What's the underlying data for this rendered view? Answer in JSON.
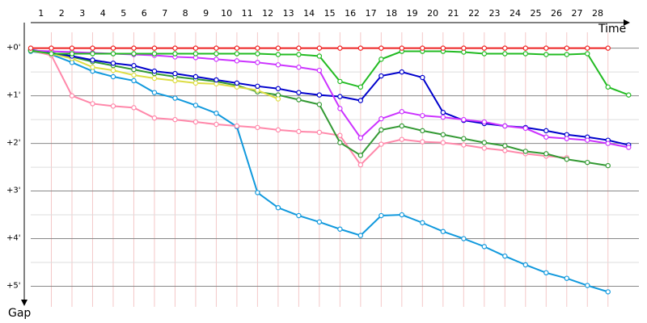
{
  "chart_data": {
    "type": "line",
    "x_label": "Time",
    "y_label": "Gap",
    "x": [
      0,
      1,
      2,
      3,
      4,
      5,
      6,
      7,
      8,
      9,
      10,
      11,
      12,
      13,
      14,
      15,
      16,
      17,
      18,
      19,
      20,
      21,
      22,
      23,
      24,
      25,
      26,
      27,
      28,
      29
    ],
    "xlim": [
      0,
      29.5
    ],
    "xticks": [
      1,
      2,
      3,
      4,
      5,
      6,
      7,
      8,
      9,
      10,
      11,
      12,
      13,
      14,
      15,
      16,
      17,
      18,
      19,
      20,
      21,
      22,
      23,
      24,
      25,
      26,
      27,
      28
    ],
    "ylim": [
      -22,
      330
    ],
    "yticks": [
      {
        "value": 0,
        "label": "+0'"
      },
      {
        "value": 60,
        "label": "+1'"
      },
      {
        "value": 120,
        "label": "+2'"
      },
      {
        "value": 180,
        "label": "+3'"
      },
      {
        "value": 240,
        "label": "+4'"
      },
      {
        "value": 300,
        "label": "+5'"
      }
    ],
    "minor_yticks": [
      30,
      90,
      150,
      210,
      270
    ],
    "grid": true,
    "series": [
      {
        "color": "#1199dd",
        "values": [
          4,
          8,
          18,
          29,
          36,
          41,
          56,
          63,
          72,
          82,
          99,
          182,
          201,
          211,
          219,
          228,
          236,
          211,
          210,
          220,
          231,
          240,
          250,
          262,
          273,
          283,
          290,
          299,
          307,
          null
        ]
      },
      {
        "color": "#ff88aa",
        "values": [
          3,
          9,
          60,
          70,
          73,
          75,
          88,
          90,
          93,
          96,
          98,
          100,
          103,
          105,
          106,
          110,
          147,
          121,
          115,
          118,
          119,
          122,
          126,
          129,
          133,
          136,
          138,
          null,
          null,
          null
        ]
      },
      {
        "color": "#339933",
        "values": [
          3,
          6,
          11,
          17,
          22,
          27,
          32,
          36,
          39,
          42,
          47,
          55,
          59,
          65,
          71,
          119,
          135,
          103,
          98,
          104,
          109,
          114,
          119,
          123,
          130,
          133,
          140,
          144,
          148,
          null
        ]
      },
      {
        "color": "#dddd44",
        "values": [
          3,
          7,
          13,
          24,
          28,
          34,
          38,
          41,
          44,
          45,
          49,
          53,
          64,
          null,
          null,
          null,
          null,
          null,
          null,
          null,
          null,
          null,
          null,
          null,
          null,
          null,
          null,
          null,
          null,
          null
        ]
      },
      {
        "color": "#0000cc",
        "values": [
          2,
          6,
          10,
          15,
          19,
          22,
          29,
          32,
          36,
          40,
          44,
          48,
          51,
          56,
          59,
          61,
          66,
          35,
          30,
          37,
          81,
          91,
          95,
          98,
          100,
          104,
          109,
          112,
          116,
          122
        ]
      },
      {
        "color": "#cc33ff",
        "values": [
          3,
          4,
          5,
          6,
          7,
          8,
          9,
          11,
          12,
          14,
          16,
          18,
          21,
          24,
          28,
          76,
          113,
          89,
          80,
          85,
          87,
          90,
          93,
          98,
          101,
          112,
          114,
          116,
          120,
          125
        ]
      },
      {
        "color": "#22bb22",
        "values": [
          3,
          7,
          7,
          7,
          7,
          7,
          7,
          7,
          7,
          7,
          7,
          7,
          8,
          8,
          10,
          42,
          49,
          14,
          4,
          4,
          4,
          5,
          7,
          7,
          7,
          8,
          8,
          7,
          49,
          59
        ]
      },
      {
        "color": "#ee2222",
        "values": [
          0,
          0,
          0,
          0,
          0,
          0,
          0,
          0,
          0,
          0,
          0,
          0,
          0,
          0,
          0,
          0,
          0,
          0,
          0,
          0,
          0,
          0,
          0,
          0,
          0,
          0,
          0,
          0,
          0,
          null
        ]
      }
    ]
  }
}
